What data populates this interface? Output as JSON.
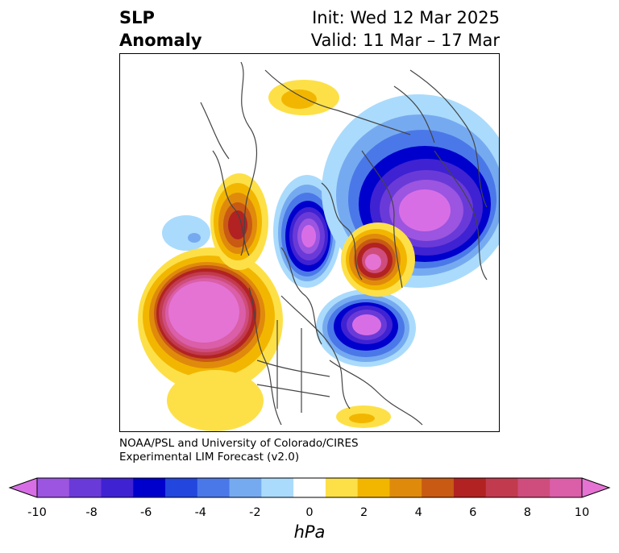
{
  "title": {
    "left_line1": "SLP",
    "left_line2": "Anomaly",
    "right_line1": "Init: Wed 12 Mar 2025",
    "right_line2": "Valid: 11 Mar – 17 Mar"
  },
  "credit": {
    "line1": "NOAA/PSL and University of Colorado/CIRES",
    "line2": "Experimental LIM Forecast (v2.0)"
  },
  "colorbar": {
    "unit": "hPa",
    "tick_labels": [
      "-10",
      "-8",
      "-6",
      "-4",
      "-2",
      "0",
      "2",
      "4",
      "6",
      "8",
      "10"
    ],
    "levels": [
      -10,
      -9,
      -8,
      -7,
      -6,
      -5,
      -4,
      -3,
      -2,
      -1,
      1,
      2,
      3,
      4,
      5,
      6,
      7,
      8,
      9,
      10
    ],
    "colors": [
      "#d86ee6",
      "#9b55e0",
      "#6a3ad8",
      "#3f22d2",
      "#0000cc",
      "#2346de",
      "#4b78e8",
      "#76aaf0",
      "#aadbfc",
      "#ffffff",
      "#fde047",
      "#f2b600",
      "#e08a0c",
      "#c85a14",
      "#b22222",
      "#c23a4e",
      "#cf4d7c",
      "#da5ea8",
      "#e573d3"
    ],
    "extend": "both"
  },
  "map_colors": {
    "neg1": "#aadbfc",
    "neg2": "#76aaf0",
    "neg3": "#4b78e8",
    "neg4": "#0000cc",
    "neg5": "#3f22d2",
    "neg6": "#6a3ad8",
    "neg7": "#9b55e0",
    "neg8": "#d86ee6",
    "pos1": "#fde047",
    "pos2": "#f2b600",
    "pos3": "#e08a0c",
    "pos4": "#c85a14",
    "pos5": "#b22222",
    "pos6": "#c23a4e",
    "pos7": "#cf4d7c",
    "pos8": "#da5ea8",
    "pos9": "#e573d3",
    "coast": "#444444"
  }
}
